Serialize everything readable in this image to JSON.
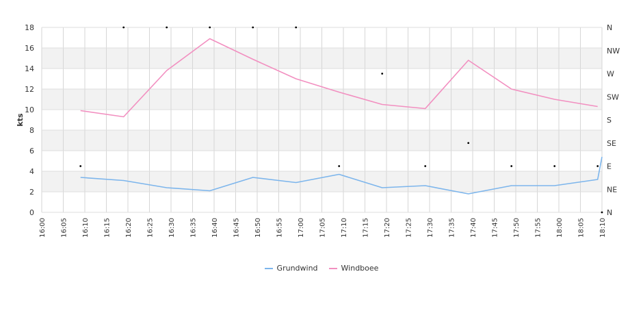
{
  "chart_data": {
    "type": "line",
    "ylabel": "kts",
    "ylim": [
      0,
      18
    ],
    "y_ticks": [
      "0",
      "2",
      "4",
      "6",
      "8",
      "10",
      "12",
      "14",
      "16",
      "18"
    ],
    "right_axis_ticks": [
      "N",
      "NE",
      "E",
      "SE",
      "S",
      "SW",
      "W",
      "NW",
      "N"
    ],
    "x_ticks": [
      "16:00",
      "16:05",
      "16:10",
      "16:15",
      "16:20",
      "16:25",
      "16:30",
      "16:35",
      "16:40",
      "16:45",
      "16:50",
      "16:55",
      "17:00",
      "17:05",
      "17:10",
      "17:15",
      "17:20",
      "17:25",
      "17:30",
      "17:35",
      "17:40",
      "17:45",
      "17:50",
      "17:55",
      "18:00",
      "18:05",
      "18:10"
    ],
    "x_min_minutes": 0,
    "x_max_minutes": 130,
    "grid": true,
    "legend_position": "bottom",
    "series": [
      {
        "name": "Grundwind",
        "color": "#7cb5ec",
        "x": [
          "16:09",
          "16:19",
          "16:29",
          "16:39",
          "16:49",
          "16:59",
          "17:09",
          "17:19",
          "17:29",
          "17:39",
          "17:49",
          "17:59",
          "18:09",
          "18:10"
        ],
        "values": [
          3.4,
          3.1,
          2.4,
          2.1,
          3.4,
          2.9,
          3.7,
          2.4,
          2.6,
          1.8,
          2.6,
          2.6,
          3.2,
          5.4
        ]
      },
      {
        "name": "Windboee",
        "color": "#f28fc0",
        "x": [
          "16:09",
          "16:19",
          "16:29",
          "16:39",
          "16:49",
          "16:59",
          "17:09",
          "17:19",
          "17:29",
          "17:39",
          "17:49",
          "17:59",
          "18:09"
        ],
        "values": [
          9.9,
          9.3,
          13.8,
          16.9,
          14.9,
          13.0,
          11.7,
          10.5,
          10.1,
          14.8,
          12.0,
          11.0,
          10.3
        ]
      }
    ],
    "direction_points": {
      "x": [
        "16:09",
        "16:19",
        "16:29",
        "16:39",
        "16:49",
        "16:59",
        "17:09",
        "17:19",
        "17:29",
        "17:39",
        "17:49",
        "17:59",
        "18:09",
        "18:10"
      ],
      "values": [
        "E",
        "N",
        "N",
        "N",
        "N",
        "N",
        "E",
        "W",
        "E",
        "SE",
        "E",
        "E",
        "E",
        "N"
      ]
    }
  }
}
